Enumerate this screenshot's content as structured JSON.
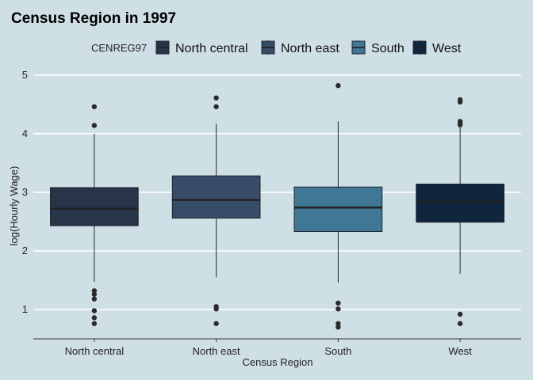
{
  "chart_data": {
    "type": "boxplot",
    "title": "Census Region in 1997",
    "xlabel": "Census Region",
    "ylabel": "log(Hourly Wage)",
    "ylim": [
      0.5,
      5.2
    ],
    "yticks": [
      1,
      2,
      3,
      4,
      5
    ],
    "grid": "horizontal",
    "legend": {
      "title": "CENREG97",
      "position": "top",
      "entries": [
        "North central",
        "North east",
        "South",
        "West"
      ]
    },
    "categories": [
      "North central",
      "North east",
      "South",
      "West"
    ],
    "boxes": [
      {
        "category": "North central",
        "color": "#283549",
        "whisker_low": 1.47,
        "q1": 2.43,
        "median": 2.72,
        "q3": 3.08,
        "whisker_high": 4.0,
        "outliers": [
          4.46,
          4.14,
          1.32,
          1.26,
          1.18,
          0.98,
          0.86,
          0.76
        ]
      },
      {
        "category": "North east",
        "color": "#374c66",
        "whisker_low": 1.55,
        "q1": 2.56,
        "median": 2.87,
        "q3": 3.28,
        "whisker_high": 4.17,
        "outliers": [
          4.61,
          4.46,
          1.05,
          1.01,
          0.76
        ]
      },
      {
        "category": "South",
        "color": "#3f7795",
        "whisker_low": 1.46,
        "q1": 2.33,
        "median": 2.74,
        "q3": 3.09,
        "whisker_high": 4.21,
        "outliers": [
          4.82,
          1.11,
          1.01,
          0.76,
          0.7
        ]
      },
      {
        "category": "West",
        "color": "#10263f",
        "whisker_low": 1.61,
        "q1": 2.49,
        "median": 2.84,
        "q3": 3.14,
        "whisker_high": 4.12,
        "outliers": [
          4.58,
          4.54,
          4.21,
          4.18,
          4.15,
          0.92,
          0.76
        ]
      }
    ]
  }
}
